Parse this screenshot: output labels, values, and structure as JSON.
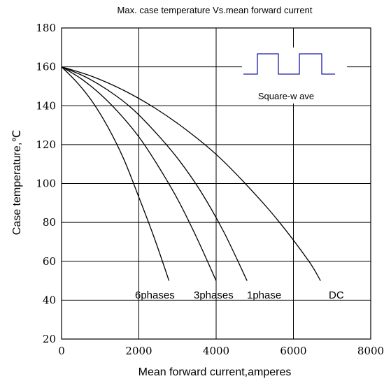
{
  "chart_data": {
    "type": "line",
    "title": "Max. case temperature Vs.mean forward current",
    "xlabel": "Mean forward  current,amperes",
    "ylabel": "Case temperature,℃",
    "xlim": [
      0,
      8000
    ],
    "ylim": [
      20,
      180
    ],
    "xticks": [
      "0",
      "2000",
      "4000",
      "6000",
      "8000"
    ],
    "yticks": [
      "20",
      "40",
      "60",
      "80",
      "100",
      "120",
      "140",
      "160",
      "180"
    ],
    "grid": true,
    "series": [
      {
        "name": "6phases",
        "label": "6phases",
        "x": [
          0,
          400,
          800,
          1200,
          1600,
          2000,
          2400,
          2780
        ],
        "y": [
          160,
          152,
          142,
          129,
          113,
          93,
          72,
          50
        ]
      },
      {
        "name": "3phases",
        "label": "3phases",
        "x": [
          0,
          500,
          1000,
          1500,
          2000,
          2500,
          3000,
          3500,
          4000
        ],
        "y": [
          160,
          154,
          146,
          136,
          124,
          109,
          92,
          72,
          50
        ]
      },
      {
        "name": "1phase",
        "label": "1phase",
        "x": [
          0,
          600,
          1200,
          1800,
          2400,
          3000,
          3600,
          4200,
          4800
        ],
        "y": [
          160,
          155,
          148,
          139,
          127,
          113,
          96,
          75,
          50
        ]
      },
      {
        "name": "DC",
        "label": "DC",
        "x": [
          0,
          800,
          1600,
          2400,
          3200,
          4000,
          4800,
          5600,
          6400,
          6700
        ],
        "y": [
          160,
          155,
          148,
          139,
          128,
          115,
          99,
          81,
          60,
          50
        ]
      }
    ],
    "inset": {
      "label": "Square-w ave",
      "color": "#1a1aa8"
    }
  }
}
